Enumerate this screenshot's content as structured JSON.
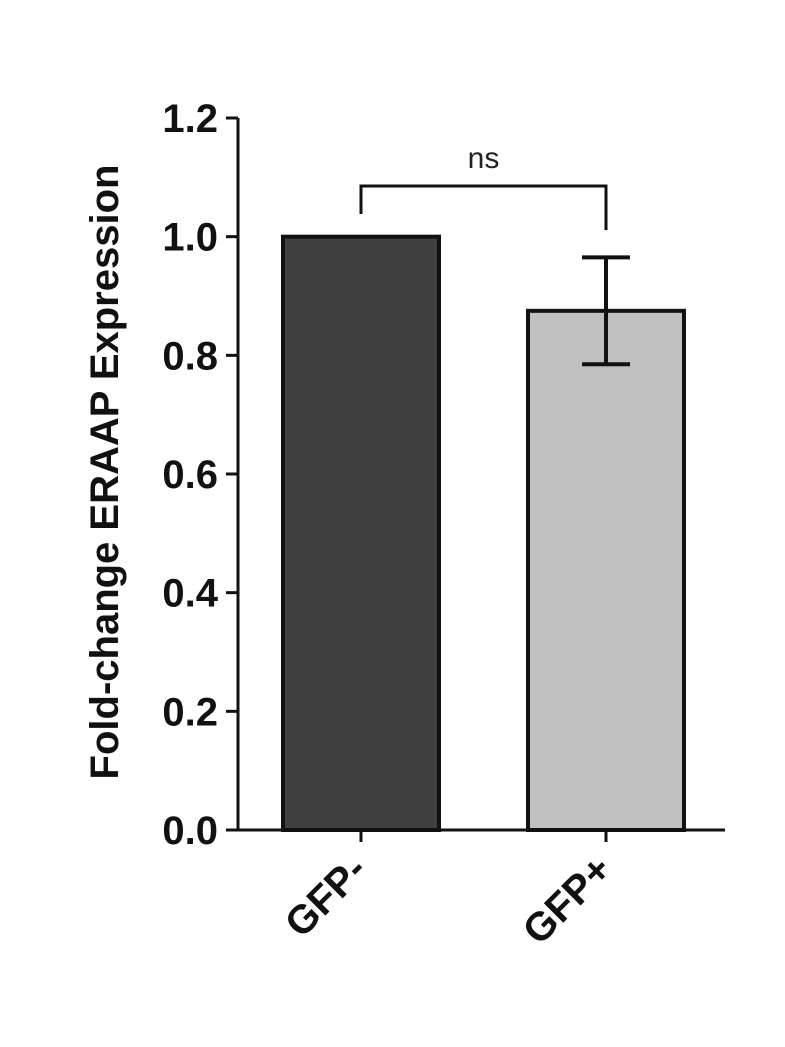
{
  "chart_data": {
    "type": "bar",
    "categories": [
      "GFP-",
      "GFP+"
    ],
    "values": [
      1.0,
      0.875
    ],
    "error": [
      0.0,
      0.09
    ],
    "colors": [
      "#404040",
      "#c0c0c0"
    ],
    "ylabel": "Fold-change ERAAP Expression",
    "xlabel": "",
    "ylim": [
      0,
      1.2
    ],
    "yticks": [
      "0.0",
      "0.2",
      "0.4",
      "0.6",
      "0.8",
      "1.0",
      "1.2"
    ],
    "ytick_values": [
      0.0,
      0.2,
      0.4,
      0.6,
      0.8,
      1.0,
      1.2
    ],
    "significance": {
      "between": [
        "GFP-",
        "GFP+"
      ],
      "label": "ns"
    },
    "grid": false
  }
}
